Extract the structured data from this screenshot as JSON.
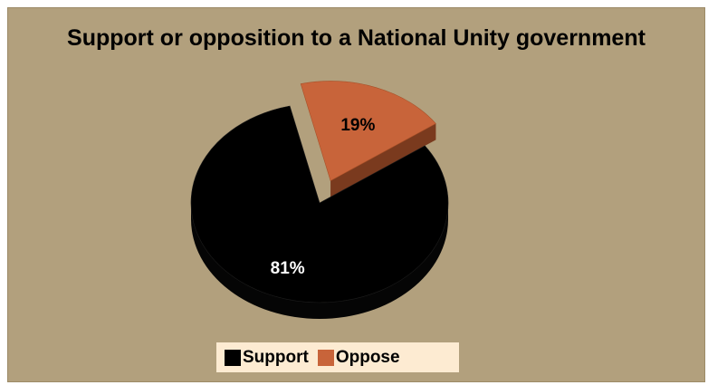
{
  "colors": {
    "background": "#b2a07d",
    "legend_background": "#fdebd2",
    "support": "#000000",
    "oppose": "#c8643a",
    "oppose_side": "#7a3a1e",
    "label_on_support": "#ffffff",
    "label_on_oppose": "#000000"
  },
  "chart_data": {
    "type": "pie",
    "title": "Support or opposition to a National Unity government",
    "categories": [
      "Support",
      "Oppose"
    ],
    "values": [
      81,
      19
    ],
    "data_labels": [
      "81%",
      "19%"
    ],
    "exploded": [
      "Oppose"
    ],
    "style": "3d",
    "legend_position": "bottom"
  }
}
